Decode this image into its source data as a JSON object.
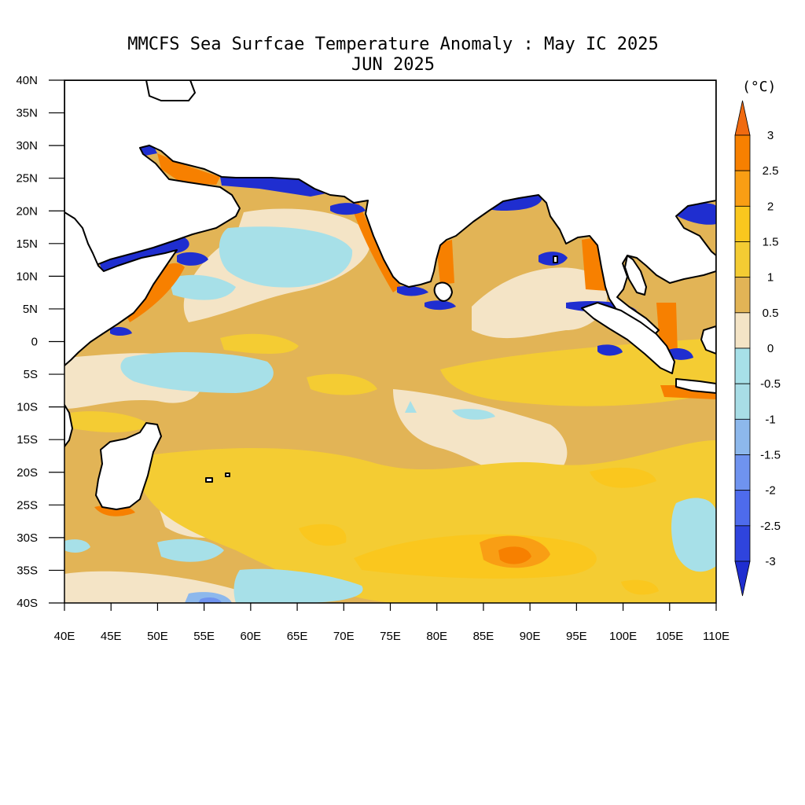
{
  "title_line1": "MMCFS Sea Surfcae Temperature Anomaly : May IC 2025",
  "title_line2": "JUN 2025",
  "lat_labels": [
    "40N",
    "35N",
    "30N",
    "25N",
    "20N",
    "15N",
    "10N",
    "5N",
    "0",
    "5S",
    "10S",
    "15S",
    "20S",
    "25S",
    "30S",
    "35S",
    "40S"
  ],
  "lon_labels": [
    "40E",
    "45E",
    "50E",
    "55E",
    "60E",
    "65E",
    "70E",
    "75E",
    "80E",
    "85E",
    "90E",
    "95E",
    "100E",
    "105E",
    "110E"
  ],
  "colorbar": {
    "unit": "(°C)",
    "labels": [
      "3",
      "2.5",
      "2",
      "1.5",
      "1",
      "0.5",
      "0",
      "-0.5",
      "-1",
      "-1.5",
      "-2",
      "-2.5",
      "-3"
    ],
    "colors": [
      "#f06a10",
      "#f78000",
      "#f99e14",
      "#fac71e",
      "#f4cc33",
      "#e2b456",
      "#f4e4c6",
      "#a7e0e8",
      "#a8dde6",
      "#8db8ec",
      "#6f93ef",
      "#4e6bec",
      "#2f44dd",
      "#1f2ed0"
    ]
  },
  "chart_data": {
    "type": "heatmap",
    "title": "MMCFS Sea Surfcae Temperature Anomaly : May IC 2025",
    "subtitle": "JUN 2025",
    "x_range": [
      40,
      110
    ],
    "y_range": [
      -40,
      40
    ],
    "x_ticks": [
      40,
      45,
      50,
      55,
      60,
      65,
      70,
      75,
      80,
      85,
      90,
      95,
      100,
      105,
      110
    ],
    "y_ticks": [
      40,
      35,
      30,
      25,
      20,
      15,
      10,
      5,
      0,
      -5,
      -10,
      -15,
      -20,
      -25,
      -30,
      -35,
      -40
    ],
    "contour_levels": [
      -3,
      -2.5,
      -2,
      -1.5,
      -1,
      -0.5,
      0,
      0.5,
      1,
      1.5,
      2,
      2.5,
      3
    ],
    "unit": "°C",
    "approx_regions": [
      {
        "lon": 63,
        "lat": 11,
        "anomaly": -0.5
      },
      {
        "lon": 60,
        "lat": -4,
        "anomaly": -0.5
      },
      {
        "lon": 72,
        "lat": 0,
        "anomaly": 0.7
      },
      {
        "lon": 88,
        "lat": 10,
        "anomaly": 0.7
      },
      {
        "lon": 80,
        "lat": -25,
        "anomaly": 1.2
      },
      {
        "lon": 88,
        "lat": -33,
        "anomaly": 2.2
      },
      {
        "lon": 107,
        "lat": -27,
        "anomaly": -0.3
      },
      {
        "lon": 56,
        "lat": -38,
        "anomaly": -1.5
      }
    ]
  }
}
